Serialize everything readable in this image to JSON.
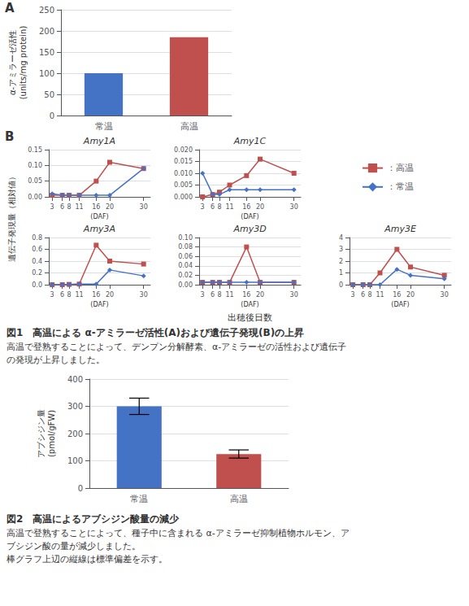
{
  "chart_data": [
    {
      "type": "bar",
      "annotations": [
        "A"
      ],
      "categories": [
        "常温",
        "高温"
      ],
      "values": [
        100,
        185
      ],
      "colors": [
        "#4472C4",
        "#C0504D"
      ],
      "ylabel": "α-アミラーゼ活性\n(units/mg protein)",
      "ylim": [
        0,
        250
      ],
      "yticks": [
        0,
        50,
        100,
        150,
        200,
        250
      ],
      "grid": true
    },
    {
      "type": "line",
      "annotations": [
        "B",
        "図1　高温による α-アミラーゼ活性(A)および遺伝子発現(B)の上昇",
        "高温で登熟することによって、デンプン分解酵素、α-アミラーゼの活性および遺伝子",
        "の発現が上昇しました。"
      ],
      "ylabel": "遺伝子発現量（相対値）",
      "xlabel": "出穂後日数",
      "legend": "upper right",
      "grid": true,
      "panels": [
        {
          "title": "Amy1A",
          "xlabel": "(DAF)",
          "x": [
            3,
            6,
            8,
            11,
            16,
            20,
            30
          ],
          "xlim": [
            2,
            32
          ],
          "xticks": [
            3,
            6,
            8,
            11,
            16,
            20,
            30
          ],
          "ylim": [
            0,
            0.15
          ],
          "yticks": [
            {
              "value": 0,
              "label": "0.00"
            },
            0.05,
            {
              "value": 0.1,
              "label": "0.10"
            },
            0.15
          ],
          "series": [
            {
              "name": "：高温",
              "color": "#C0504D",
              "marker": "square",
              "values": [
                0.005,
                0.005,
                0.005,
                0.005,
                0.05,
                0.11,
                0.09
              ]
            },
            {
              "name": "：常温",
              "color": "#4472C4",
              "marker": "diamond",
              "values": [
                0.01,
                0.005,
                0.005,
                0.005,
                0.005,
                0.005,
                0.09
              ]
            }
          ]
        },
        {
          "title": "Amy1C",
          "xlabel": "(DAF)",
          "x": [
            3,
            6,
            8,
            11,
            16,
            20,
            30
          ],
          "xlim": [
            2,
            32
          ],
          "xticks": [
            3,
            6,
            8,
            11,
            16,
            20,
            30
          ],
          "ylim": [
            0,
            0.02
          ],
          "yticks": [
            {
              "value": 0,
              "label": "0.000"
            },
            0.005,
            {
              "value": 0.01,
              "label": "0.010"
            },
            0.015,
            {
              "value": 0.02,
              "label": "0.020"
            }
          ],
          "series": [
            {
              "name": "：高温",
              "color": "#C0504D",
              "marker": "square",
              "values": [
                0.0,
                0.001,
                0.002,
                0.005,
                0.009,
                0.016,
                0.01
              ]
            },
            {
              "name": "：常温",
              "color": "#4472C4",
              "marker": "diamond",
              "values": [
                0.01,
                0.001,
                0.001,
                0.003,
                0.003,
                0.003,
                0.003
              ]
            }
          ]
        },
        {
          "title": "Amy3A",
          "xlabel": "(DAF)",
          "x": [
            3,
            6,
            8,
            11,
            16,
            20,
            30
          ],
          "xlim": [
            2,
            32
          ],
          "xticks": [
            3,
            6,
            8,
            11,
            16,
            20,
            30
          ],
          "ylim": [
            0,
            0.8
          ],
          "yticks": [
            {
              "value": 0,
              "label": "0.0"
            },
            0.2,
            0.4,
            0.6,
            0.8
          ],
          "series": [
            {
              "name": "：高温",
              "color": "#C0504D",
              "marker": "square",
              "values": [
                0.0,
                0.0,
                0.005,
                0.01,
                0.67,
                0.4,
                0.35
              ]
            },
            {
              "name": "：常温",
              "color": "#4472C4",
              "marker": "diamond",
              "values": [
                0.0,
                0.0,
                0.005,
                0.01,
                0.01,
                0.25,
                0.15
              ]
            }
          ]
        },
        {
          "title": "Amy3D",
          "xlabel": "(DAF)",
          "x": [
            3,
            6,
            8,
            11,
            16,
            20,
            30
          ],
          "xlim": [
            2,
            32
          ],
          "xticks": [
            3,
            6,
            8,
            11,
            16,
            20,
            30
          ],
          "ylim": [
            0,
            0.1
          ],
          "yticks": [
            {
              "value": 0,
              "label": "0.00"
            },
            0.02,
            0.04,
            0.06,
            0.08,
            {
              "value": 0.1,
              "label": "0.10"
            }
          ],
          "series": [
            {
              "name": "：高温",
              "color": "#C0504D",
              "marker": "square",
              "values": [
                0.005,
                0.005,
                0.005,
                0.005,
                0.08,
                0.005,
                0.005
              ]
            },
            {
              "name": "：常温",
              "color": "#4472C4",
              "marker": "diamond",
              "values": [
                0.005,
                0.005,
                0.005,
                0.005,
                0.005,
                0.005,
                0.005
              ]
            }
          ]
        },
        {
          "title": "Amy3E",
          "xlabel": "(DAF)",
          "x": [
            3,
            6,
            8,
            11,
            16,
            20,
            30
          ],
          "xlim": [
            2,
            32
          ],
          "xticks": [
            3,
            6,
            8,
            11,
            16,
            20,
            30
          ],
          "ylim": [
            0,
            4
          ],
          "yticks": [
            0,
            1,
            2,
            3,
            4
          ],
          "series": [
            {
              "name": "：高温",
              "color": "#C0504D",
              "marker": "square",
              "values": [
                0.0,
                0.0,
                0.0,
                1.0,
                3.0,
                1.5,
                0.8
              ]
            },
            {
              "name": "：常温",
              "color": "#4472C4",
              "marker": "diamond",
              "values": [
                0.0,
                0.0,
                0.0,
                0.0,
                1.3,
                0.8,
                0.5
              ]
            }
          ]
        }
      ]
    },
    {
      "type": "bar",
      "annotations": [
        "図2　高温によるアブシジン酸量の減少",
        "高温で登熟することによって、種子中に含まれる α-アミラーゼ抑制植物ホルモン、ア",
        "ブシジン酸の量が減少しました。",
        "棒グラフ上辺の縦線は標準偏差を示す。"
      ],
      "categories": [
        "常温",
        "高温"
      ],
      "values": [
        300,
        125
      ],
      "errors": [
        30,
        15
      ],
      "colors": [
        "#4472C4",
        "#C0504D"
      ],
      "ylabel": "アブシジン量\n(pmol/gFW)",
      "ylim": [
        0,
        400
      ],
      "yticks": [
        0,
        100,
        200,
        300,
        400
      ],
      "grid": true
    }
  ]
}
